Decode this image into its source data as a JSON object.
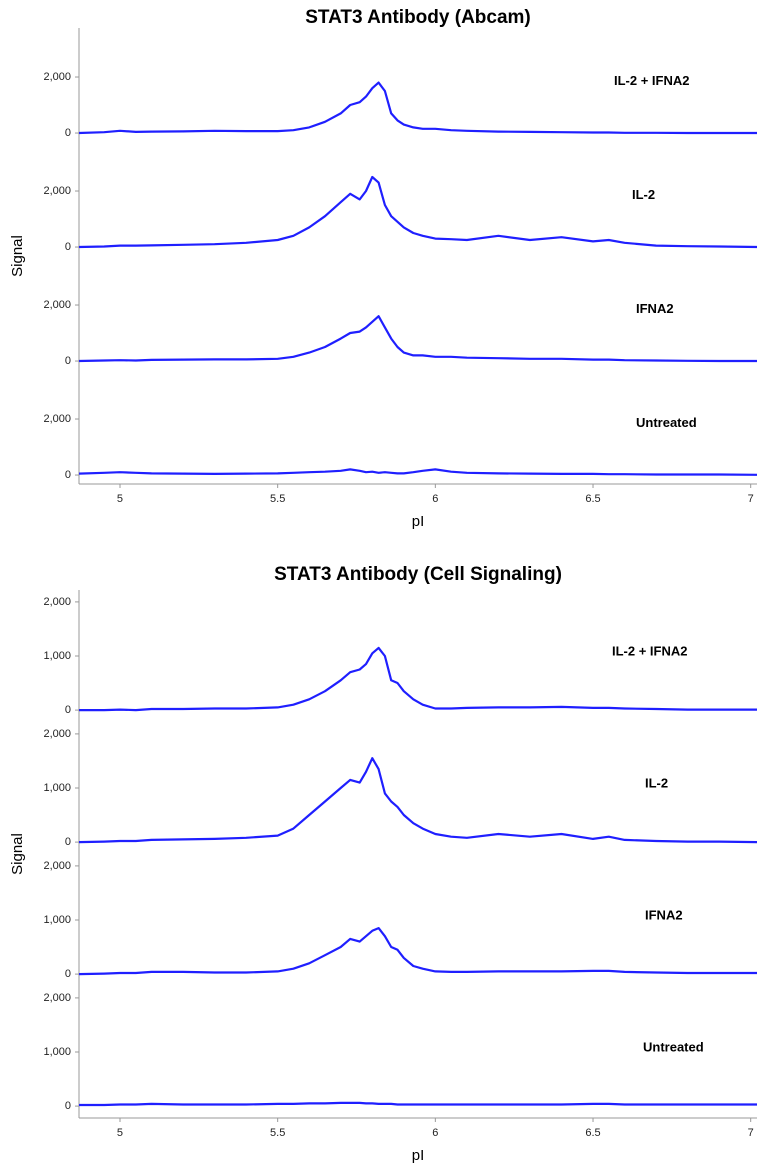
{
  "chart_data": [
    {
      "type": "line",
      "title": "STAT3 Antibody (Abcam)",
      "xlabel": "pI",
      "ylabel": "Signal",
      "xlim": [
        4.87,
        7.02
      ],
      "xticks": [
        5,
        5.5,
        6,
        6.5,
        7
      ],
      "x": [
        4.87,
        4.95,
        5.0,
        5.05,
        5.1,
        5.2,
        5.3,
        5.4,
        5.5,
        5.55,
        5.6,
        5.65,
        5.7,
        5.73,
        5.76,
        5.78,
        5.8,
        5.82,
        5.84,
        5.86,
        5.88,
        5.9,
        5.93,
        5.96,
        6.0,
        6.05,
        6.1,
        6.2,
        6.3,
        6.4,
        6.5,
        6.55,
        6.6,
        6.7,
        6.8,
        6.9,
        7.02
      ],
      "panels": [
        {
          "ylim": [
            -320,
            3750
          ],
          "yticks": [
            0,
            {
              "value": 2000,
              "label": "2,000"
            }
          ],
          "series": [
            {
              "name": "IL-2 + IFNA2",
              "color": "#1f1fff",
              "values": [
                0,
                30,
                80,
                40,
                50,
                60,
                80,
                70,
                70,
                100,
                200,
                400,
                700,
                1000,
                1100,
                1300,
                1600,
                1800,
                1500,
                700,
                450,
                300,
                200,
                150,
                150,
                100,
                80,
                50,
                40,
                30,
                20,
                20,
                10,
                10,
                0,
                0,
                0
              ]
            }
          ]
        },
        {
          "ylim": [
            -320,
            3750
          ],
          "yticks": [
            0,
            {
              "value": 2000,
              "label": "2,000"
            }
          ],
          "series": [
            {
              "name": "IL-2",
              "color": "#1f1fff",
              "values": [
                0,
                20,
                50,
                50,
                60,
                80,
                100,
                150,
                250,
                400,
                700,
                1100,
                1600,
                1900,
                1700,
                2000,
                2500,
                2300,
                1500,
                1100,
                900,
                700,
                500,
                400,
                300,
                280,
                250,
                400,
                250,
                350,
                200,
                250,
                150,
                50,
                30,
                20,
                0
              ]
            }
          ]
        },
        {
          "ylim": [
            -320,
            3750
          ],
          "yticks": [
            0,
            {
              "value": 2000,
              "label": "2,000"
            }
          ],
          "series": [
            {
              "name": "IFNA2",
              "color": "#1f1fff",
              "values": [
                0,
                20,
                30,
                20,
                40,
                50,
                60,
                60,
                80,
                150,
                300,
                500,
                800,
                1000,
                1050,
                1200,
                1400,
                1600,
                1200,
                800,
                500,
                300,
                200,
                200,
                150,
                150,
                120,
                100,
                80,
                80,
                50,
                50,
                30,
                20,
                10,
                0,
                0
              ]
            }
          ]
        },
        {
          "ylim": [
            -320,
            3750
          ],
          "yticks": [
            0,
            {
              "value": 2000,
              "label": "2,000"
            }
          ],
          "series": [
            {
              "name": "Untreated",
              "color": "#1f1fff",
              "values": [
                50,
                80,
                100,
                80,
                60,
                50,
                40,
                50,
                60,
                80,
                100,
                120,
                150,
                200,
                150,
                100,
                120,
                80,
                100,
                80,
                60,
                60,
                100,
                150,
                200,
                120,
                80,
                60,
                50,
                40,
                40,
                30,
                30,
                20,
                20,
                20,
                10
              ]
            }
          ]
        }
      ]
    },
    {
      "type": "line",
      "title": "STAT3 Antibody (Cell Signaling)",
      "xlabel": "pI",
      "ylabel": "Signal",
      "xlim": [
        4.87,
        7.02
      ],
      "xticks": [
        5,
        5.5,
        6,
        6.5,
        7
      ],
      "x": [
        4.87,
        4.95,
        5.0,
        5.05,
        5.1,
        5.2,
        5.3,
        5.4,
        5.5,
        5.55,
        5.6,
        5.65,
        5.7,
        5.73,
        5.76,
        5.78,
        5.8,
        5.82,
        5.84,
        5.86,
        5.88,
        5.9,
        5.93,
        5.96,
        6.0,
        6.05,
        6.1,
        6.2,
        6.3,
        6.4,
        6.5,
        6.55,
        6.6,
        6.7,
        6.8,
        6.9,
        7.02
      ],
      "panels": [
        {
          "ylim": [
            -220,
            2220
          ],
          "yticks": [
            0,
            {
              "value": 1000,
              "label": "1,000"
            },
            {
              "value": 2000,
              "label": "2,000"
            }
          ],
          "series": [
            {
              "name": "IL-2 + IFNA2",
              "color": "#1f1fff",
              "values": [
                0,
                0,
                10,
                0,
                20,
                20,
                30,
                30,
                50,
                100,
                200,
                350,
                550,
                700,
                750,
                850,
                1050,
                1150,
                1000,
                550,
                500,
                350,
                200,
                100,
                30,
                30,
                40,
                50,
                50,
                60,
                40,
                40,
                30,
                20,
                10,
                10,
                10
              ]
            }
          ]
        },
        {
          "ylim": [
            -220,
            2220
          ],
          "yticks": [
            0,
            {
              "value": 1000,
              "label": "1,000"
            },
            {
              "value": 2000,
              "label": "2,000"
            }
          ],
          "series": [
            {
              "name": "IL-2",
              "color": "#1f1fff",
              "values": [
                0,
                10,
                20,
                20,
                40,
                50,
                60,
                80,
                120,
                250,
                500,
                750,
                1000,
                1150,
                1100,
                1300,
                1550,
                1350,
                900,
                750,
                650,
                500,
                350,
                250,
                150,
                100,
                80,
                150,
                100,
                150,
                60,
                100,
                40,
                20,
                10,
                10,
                0
              ]
            }
          ]
        },
        {
          "ylim": [
            -220,
            2220
          ],
          "yticks": [
            0,
            {
              "value": 1000,
              "label": "1,000"
            },
            {
              "value": 2000,
              "label": "2,000"
            }
          ],
          "series": [
            {
              "name": "IFNA2",
              "color": "#1f1fff",
              "values": [
                0,
                10,
                20,
                20,
                40,
                40,
                30,
                30,
                50,
                100,
                200,
                350,
                500,
                650,
                600,
                700,
                800,
                850,
                700,
                500,
                450,
                300,
                150,
                100,
                50,
                40,
                40,
                50,
                50,
                50,
                60,
                60,
                40,
                30,
                20,
                20,
                20
              ]
            }
          ]
        },
        {
          "ylim": [
            -220,
            2220
          ],
          "yticks": [
            0,
            {
              "value": 1000,
              "label": "1,000"
            },
            {
              "value": 2000,
              "label": "2,000"
            }
          ],
          "series": [
            {
              "name": "Untreated",
              "color": "#1f1fff",
              "values": [
                20,
                20,
                30,
                30,
                40,
                30,
                30,
                30,
                40,
                40,
                50,
                50,
                60,
                60,
                60,
                50,
                50,
                40,
                40,
                40,
                30,
                30,
                30,
                30,
                30,
                30,
                30,
                30,
                30,
                30,
                40,
                40,
                30,
                30,
                30,
                30,
                30
              ]
            }
          ]
        }
      ]
    }
  ]
}
